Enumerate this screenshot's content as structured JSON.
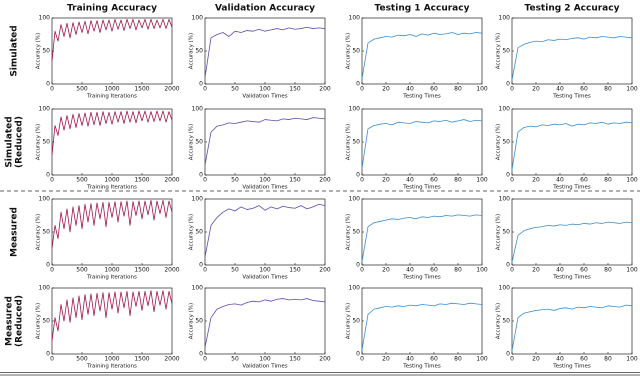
{
  "column_titles": [
    "Training Accuracy",
    "Validation Accuracy",
    "Testing 1 Accuracy",
    "Testing 2 Accuracy"
  ],
  "row_labels": [
    [
      "Simulated"
    ],
    [
      "Simulated",
      "(Reduced)"
    ],
    [
      "Measured"
    ],
    [
      "Measured",
      "(Reduced)"
    ]
  ],
  "chart_data": [
    {
      "type": "line",
      "xlabel": "Training Iterations",
      "ylabel": "Accuracy (%)",
      "color": "#a0174a",
      "xlim": [
        0,
        2000
      ],
      "ylim": [
        0,
        100
      ],
      "xticks": [
        0,
        500,
        1000,
        1500,
        2000
      ],
      "yticks": [
        0,
        50,
        100
      ],
      "x": [
        0,
        50,
        100,
        150,
        200,
        250,
        300,
        350,
        400,
        450,
        500,
        550,
        600,
        650,
        700,
        750,
        800,
        850,
        900,
        950,
        1000,
        1050,
        1100,
        1150,
        1200,
        1250,
        1300,
        1350,
        1400,
        1450,
        1500,
        1550,
        1600,
        1650,
        1700,
        1750,
        1800,
        1850,
        1900,
        1950,
        2000
      ],
      "values": [
        35,
        80,
        65,
        90,
        72,
        92,
        70,
        93,
        75,
        94,
        78,
        95,
        76,
        96,
        80,
        96,
        78,
        97,
        82,
        97,
        80,
        98,
        83,
        97,
        81,
        98,
        84,
        98,
        82,
        97,
        85,
        98,
        83,
        98,
        84,
        97,
        85,
        98,
        84,
        98,
        86
      ]
    },
    {
      "type": "line",
      "xlabel": "Validation Times",
      "ylabel": "Accuracy (%)",
      "color": "#5a4fb0",
      "xlim": [
        0,
        200
      ],
      "ylim": [
        0,
        100
      ],
      "xticks": [
        0,
        50,
        100,
        150,
        200
      ],
      "yticks": [
        0,
        50,
        100
      ],
      "x": [
        0,
        10,
        20,
        30,
        40,
        50,
        60,
        70,
        80,
        90,
        100,
        110,
        120,
        130,
        140,
        150,
        160,
        170,
        180,
        190,
        200
      ],
      "values": [
        10,
        70,
        75,
        78,
        72,
        80,
        78,
        81,
        80,
        83,
        80,
        82,
        84,
        82,
        85,
        83,
        84,
        86,
        84,
        85,
        84
      ]
    },
    {
      "type": "line",
      "xlabel": "Testing Times",
      "ylabel": "Accuracy (%)",
      "color": "#3b8fd1",
      "xlim": [
        0,
        100
      ],
      "ylim": [
        0,
        100
      ],
      "xticks": [
        0,
        20,
        40,
        60,
        80,
        100
      ],
      "yticks": [
        0,
        50,
        100
      ],
      "x": [
        0,
        5,
        10,
        15,
        20,
        25,
        30,
        35,
        40,
        45,
        50,
        55,
        60,
        65,
        70,
        75,
        80,
        85,
        90,
        95,
        100
      ],
      "values": [
        8,
        62,
        68,
        70,
        72,
        71,
        74,
        73,
        75,
        72,
        76,
        74,
        77,
        75,
        76,
        78,
        75,
        77,
        76,
        78,
        77
      ]
    },
    {
      "type": "line",
      "xlabel": "Testing Times",
      "ylabel": "Accuracy (%)",
      "color": "#3b8fd1",
      "xlim": [
        0,
        100
      ],
      "ylim": [
        0,
        100
      ],
      "xticks": [
        0,
        20,
        40,
        60,
        80,
        100
      ],
      "yticks": [
        0,
        50,
        100
      ],
      "x": [
        0,
        5,
        10,
        15,
        20,
        25,
        30,
        35,
        40,
        45,
        50,
        55,
        60,
        65,
        70,
        75,
        80,
        85,
        90,
        95,
        100
      ],
      "values": [
        6,
        55,
        60,
        63,
        65,
        64,
        67,
        66,
        68,
        67,
        69,
        70,
        68,
        71,
        70,
        72,
        71,
        70,
        72,
        71,
        70
      ]
    },
    {
      "type": "line",
      "xlabel": "Training Iterations",
      "ylabel": "Accuracy (%)",
      "color": "#a0174a",
      "xlim": [
        0,
        2000
      ],
      "ylim": [
        0,
        100
      ],
      "xticks": [
        0,
        500,
        1000,
        1500,
        2000
      ],
      "yticks": [
        0,
        50,
        100
      ],
      "x": [
        0,
        50,
        100,
        150,
        200,
        250,
        300,
        350,
        400,
        450,
        500,
        550,
        600,
        650,
        700,
        750,
        800,
        850,
        900,
        950,
        1000,
        1050,
        1100,
        1150,
        1200,
        1250,
        1300,
        1350,
        1400,
        1450,
        1500,
        1550,
        1600,
        1650,
        1700,
        1750,
        1800,
        1850,
        1900,
        1950,
        2000
      ],
      "values": [
        30,
        75,
        60,
        88,
        68,
        90,
        70,
        92,
        72,
        93,
        75,
        94,
        74,
        95,
        76,
        95,
        75,
        96,
        78,
        95,
        77,
        96,
        80,
        96,
        78,
        97,
        80,
        96,
        79,
        97,
        82,
        97,
        80,
        96,
        81,
        97,
        82,
        97,
        80,
        96,
        83
      ]
    },
    {
      "type": "line",
      "xlabel": "Validation Times",
      "ylabel": "Accuracy (%)",
      "color": "#5a4fb0",
      "xlim": [
        0,
        200
      ],
      "ylim": [
        0,
        100
      ],
      "xticks": [
        0,
        50,
        100,
        150,
        200
      ],
      "yticks": [
        0,
        50,
        100
      ],
      "x": [
        0,
        10,
        20,
        30,
        40,
        50,
        60,
        70,
        80,
        90,
        100,
        110,
        120,
        130,
        140,
        150,
        160,
        170,
        180,
        190,
        200
      ],
      "values": [
        15,
        65,
        74,
        76,
        79,
        78,
        80,
        82,
        81,
        80,
        84,
        83,
        82,
        85,
        84,
        86,
        85,
        84,
        87,
        86,
        85
      ]
    },
    {
      "type": "line",
      "xlabel": "Testing Times",
      "ylabel": "Accuracy (%)",
      "color": "#3b8fd1",
      "xlim": [
        0,
        100
      ],
      "ylim": [
        0,
        100
      ],
      "xticks": [
        0,
        20,
        40,
        60,
        80,
        100
      ],
      "yticks": [
        0,
        50,
        100
      ],
      "x": [
        0,
        5,
        10,
        15,
        20,
        25,
        30,
        35,
        40,
        45,
        50,
        55,
        60,
        65,
        70,
        75,
        80,
        85,
        90,
        95,
        100
      ],
      "values": [
        10,
        70,
        75,
        77,
        78,
        76,
        80,
        79,
        78,
        81,
        80,
        79,
        82,
        81,
        83,
        80,
        82,
        84,
        81,
        83,
        82
      ]
    },
    {
      "type": "line",
      "xlabel": "Testing Times",
      "ylabel": "Accuracy (%)",
      "color": "#3b8fd1",
      "xlim": [
        0,
        100
      ],
      "ylim": [
        0,
        100
      ],
      "xticks": [
        0,
        20,
        40,
        60,
        80,
        100
      ],
      "yticks": [
        0,
        50,
        100
      ],
      "x": [
        0,
        5,
        10,
        15,
        20,
        25,
        30,
        35,
        40,
        45,
        50,
        55,
        60,
        65,
        70,
        75,
        80,
        85,
        90,
        95,
        100
      ],
      "values": [
        8,
        65,
        72,
        74,
        73,
        76,
        75,
        77,
        76,
        78,
        74,
        77,
        76,
        79,
        78,
        80,
        77,
        79,
        78,
        80,
        79
      ]
    },
    {
      "type": "line",
      "xlabel": "Training Iterations",
      "ylabel": "Accuracy (%)",
      "color": "#a0174a",
      "xlim": [
        0,
        2000
      ],
      "ylim": [
        0,
        100
      ],
      "xticks": [
        0,
        500,
        1000,
        1500,
        2000
      ],
      "yticks": [
        0,
        50,
        100
      ],
      "x": [
        0,
        50,
        100,
        150,
        200,
        250,
        300,
        350,
        400,
        450,
        500,
        550,
        600,
        650,
        700,
        750,
        800,
        850,
        900,
        950,
        1000,
        1050,
        1100,
        1150,
        1200,
        1250,
        1300,
        1350,
        1400,
        1450,
        1500,
        1550,
        1600,
        1650,
        1700,
        1750,
        1800,
        1850,
        1900,
        1950,
        2000
      ],
      "values": [
        25,
        60,
        40,
        80,
        55,
        85,
        50,
        88,
        60,
        90,
        55,
        92,
        65,
        93,
        60,
        94,
        70,
        95,
        58,
        95,
        72,
        96,
        65,
        96,
        74,
        97,
        60,
        96,
        75,
        97,
        70,
        97,
        76,
        98,
        68,
        97,
        78,
        98,
        72,
        97,
        80
      ]
    },
    {
      "type": "line",
      "xlabel": "Validation Times",
      "ylabel": "Accuracy (%)",
      "color": "#5a4fb0",
      "xlim": [
        0,
        200
      ],
      "ylim": [
        0,
        100
      ],
      "xticks": [
        0,
        50,
        100,
        150,
        200
      ],
      "yticks": [
        0,
        50,
        100
      ],
      "x": [
        0,
        10,
        20,
        30,
        40,
        50,
        60,
        70,
        80,
        90,
        100,
        110,
        120,
        130,
        140,
        150,
        160,
        170,
        180,
        190,
        200
      ],
      "values": [
        12,
        60,
        72,
        80,
        85,
        82,
        88,
        84,
        86,
        90,
        83,
        88,
        85,
        89,
        87,
        86,
        90,
        85,
        88,
        92,
        90
      ]
    },
    {
      "type": "line",
      "xlabel": "Testing Times",
      "ylabel": "Accuracy (%)",
      "color": "#3b8fd1",
      "xlim": [
        0,
        100
      ],
      "ylim": [
        0,
        100
      ],
      "xticks": [
        0,
        20,
        40,
        60,
        80,
        100
      ],
      "yticks": [
        0,
        50,
        100
      ],
      "x": [
        0,
        5,
        10,
        15,
        20,
        25,
        30,
        35,
        40,
        45,
        50,
        55,
        60,
        65,
        70,
        75,
        80,
        85,
        90,
        95,
        100
      ],
      "values": [
        5,
        58,
        64,
        66,
        68,
        70,
        69,
        71,
        72,
        70,
        73,
        72,
        74,
        73,
        75,
        74,
        76,
        75,
        74,
        76,
        75
      ]
    },
    {
      "type": "line",
      "xlabel": "Testing Times",
      "ylabel": "Accuracy (%)",
      "color": "#3b8fd1",
      "xlim": [
        0,
        100
      ],
      "ylim": [
        0,
        100
      ],
      "xticks": [
        0,
        20,
        40,
        60,
        80,
        100
      ],
      "yticks": [
        0,
        50,
        100
      ],
      "x": [
        0,
        5,
        10,
        15,
        20,
        25,
        30,
        35,
        40,
        45,
        50,
        55,
        60,
        65,
        70,
        75,
        80,
        85,
        90,
        95,
        100
      ],
      "values": [
        4,
        45,
        52,
        55,
        57,
        58,
        60,
        59,
        61,
        60,
        62,
        61,
        63,
        62,
        64,
        63,
        65,
        64,
        63,
        65,
        64
      ]
    },
    {
      "type": "line",
      "xlabel": "Training Iterations",
      "ylabel": "Accuracy (%)",
      "color": "#a0174a",
      "xlim": [
        0,
        2000
      ],
      "ylim": [
        0,
        100
      ],
      "xticks": [
        0,
        500,
        1000,
        1500,
        2000
      ],
      "yticks": [
        0,
        50,
        100
      ],
      "x": [
        0,
        50,
        100,
        150,
        200,
        250,
        300,
        350,
        400,
        450,
        500,
        550,
        600,
        650,
        700,
        750,
        800,
        850,
        900,
        950,
        1000,
        1050,
        1100,
        1150,
        1200,
        1250,
        1300,
        1350,
        1400,
        1450,
        1500,
        1550,
        1600,
        1650,
        1700,
        1750,
        1800,
        1850,
        1900,
        1950,
        2000
      ],
      "values": [
        20,
        55,
        35,
        75,
        50,
        82,
        48,
        85,
        55,
        88,
        52,
        90,
        60,
        91,
        58,
        92,
        65,
        93,
        55,
        93,
        68,
        94,
        62,
        94,
        70,
        95,
        58,
        94,
        72,
        95,
        66,
        95,
        73,
        96,
        64,
        95,
        74,
        96,
        68,
        95,
        76
      ]
    },
    {
      "type": "line",
      "xlabel": "Validation Times",
      "ylabel": "Accuracy (%)",
      "color": "#5a4fb0",
      "xlim": [
        0,
        200
      ],
      "ylim": [
        0,
        100
      ],
      "xticks": [
        0,
        50,
        100,
        150,
        200
      ],
      "yticks": [
        0,
        50,
        100
      ],
      "x": [
        0,
        10,
        20,
        30,
        40,
        50,
        60,
        70,
        80,
        90,
        100,
        110,
        120,
        130,
        140,
        150,
        160,
        170,
        180,
        190,
        200
      ],
      "values": [
        10,
        55,
        68,
        72,
        75,
        76,
        74,
        78,
        80,
        79,
        82,
        80,
        83,
        84,
        82,
        83,
        82,
        84,
        81,
        80,
        79
      ]
    },
    {
      "type": "line",
      "xlabel": "Testing Times",
      "ylabel": "Accuracy (%)",
      "color": "#3b8fd1",
      "xlim": [
        0,
        100
      ],
      "ylim": [
        0,
        100
      ],
      "xticks": [
        0,
        20,
        40,
        60,
        80,
        100
      ],
      "yticks": [
        0,
        50,
        100
      ],
      "x": [
        0,
        5,
        10,
        15,
        20,
        25,
        30,
        35,
        40,
        45,
        50,
        55,
        60,
        65,
        70,
        75,
        80,
        85,
        90,
        95,
        100
      ],
      "values": [
        6,
        60,
        68,
        70,
        72,
        71,
        73,
        72,
        74,
        73,
        75,
        74,
        73,
        76,
        75,
        77,
        76,
        75,
        77,
        76,
        75
      ]
    },
    {
      "type": "line",
      "xlabel": "Testing Times",
      "ylabel": "Accuracy (%)",
      "color": "#3b8fd1",
      "xlim": [
        0,
        100
      ],
      "ylim": [
        0,
        100
      ],
      "xticks": [
        0,
        20,
        40,
        60,
        80,
        100
      ],
      "yticks": [
        0,
        50,
        100
      ],
      "x": [
        0,
        5,
        10,
        15,
        20,
        25,
        30,
        35,
        40,
        45,
        50,
        55,
        60,
        65,
        70,
        75,
        80,
        85,
        90,
        95,
        100
      ],
      "values": [
        5,
        55,
        62,
        64,
        66,
        67,
        68,
        66,
        69,
        70,
        68,
        71,
        70,
        72,
        71,
        70,
        73,
        72,
        71,
        74,
        73
      ]
    }
  ]
}
